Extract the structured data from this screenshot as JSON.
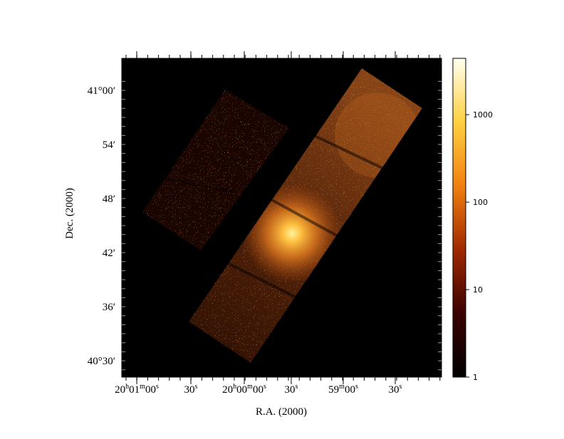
{
  "axes": {
    "x_title": "R.A. (2000)",
    "y_title": "Dec. (2000)",
    "x_ticks": [
      [
        {
          "text": "20",
          "sup": false
        },
        {
          "text": "h",
          "sup": true
        },
        {
          "text": "01",
          "sup": false
        },
        {
          "text": "m",
          "sup": true
        },
        {
          "text": "00",
          "sup": false
        },
        {
          "text": "s",
          "sup": true
        }
      ],
      [
        {
          "text": "30",
          "sup": false
        },
        {
          "text": "s",
          "sup": true
        }
      ],
      [
        {
          "text": "20",
          "sup": false
        },
        {
          "text": "h",
          "sup": true
        },
        {
          "text": "00",
          "sup": false
        },
        {
          "text": "m",
          "sup": true
        },
        {
          "text": "00",
          "sup": false
        },
        {
          "text": "s",
          "sup": true
        }
      ],
      [
        {
          "text": "30",
          "sup": false
        },
        {
          "text": "s",
          "sup": true
        }
      ],
      [
        {
          "text": "59",
          "sup": false
        },
        {
          "text": "m",
          "sup": true
        },
        {
          "text": "00",
          "sup": false
        },
        {
          "text": "s",
          "sup": true
        }
      ],
      [
        {
          "text": "30",
          "sup": false
        },
        {
          "text": "s",
          "sup": true
        }
      ]
    ],
    "y_ticks": [
      "41°00′",
      "54′",
      "48′",
      "42′",
      "36′",
      "40°30′"
    ]
  },
  "colorbar": {
    "log": true,
    "lim": [
      1,
      4400
    ],
    "ticks": [
      1,
      10,
      100,
      1000
    ]
  }
}
